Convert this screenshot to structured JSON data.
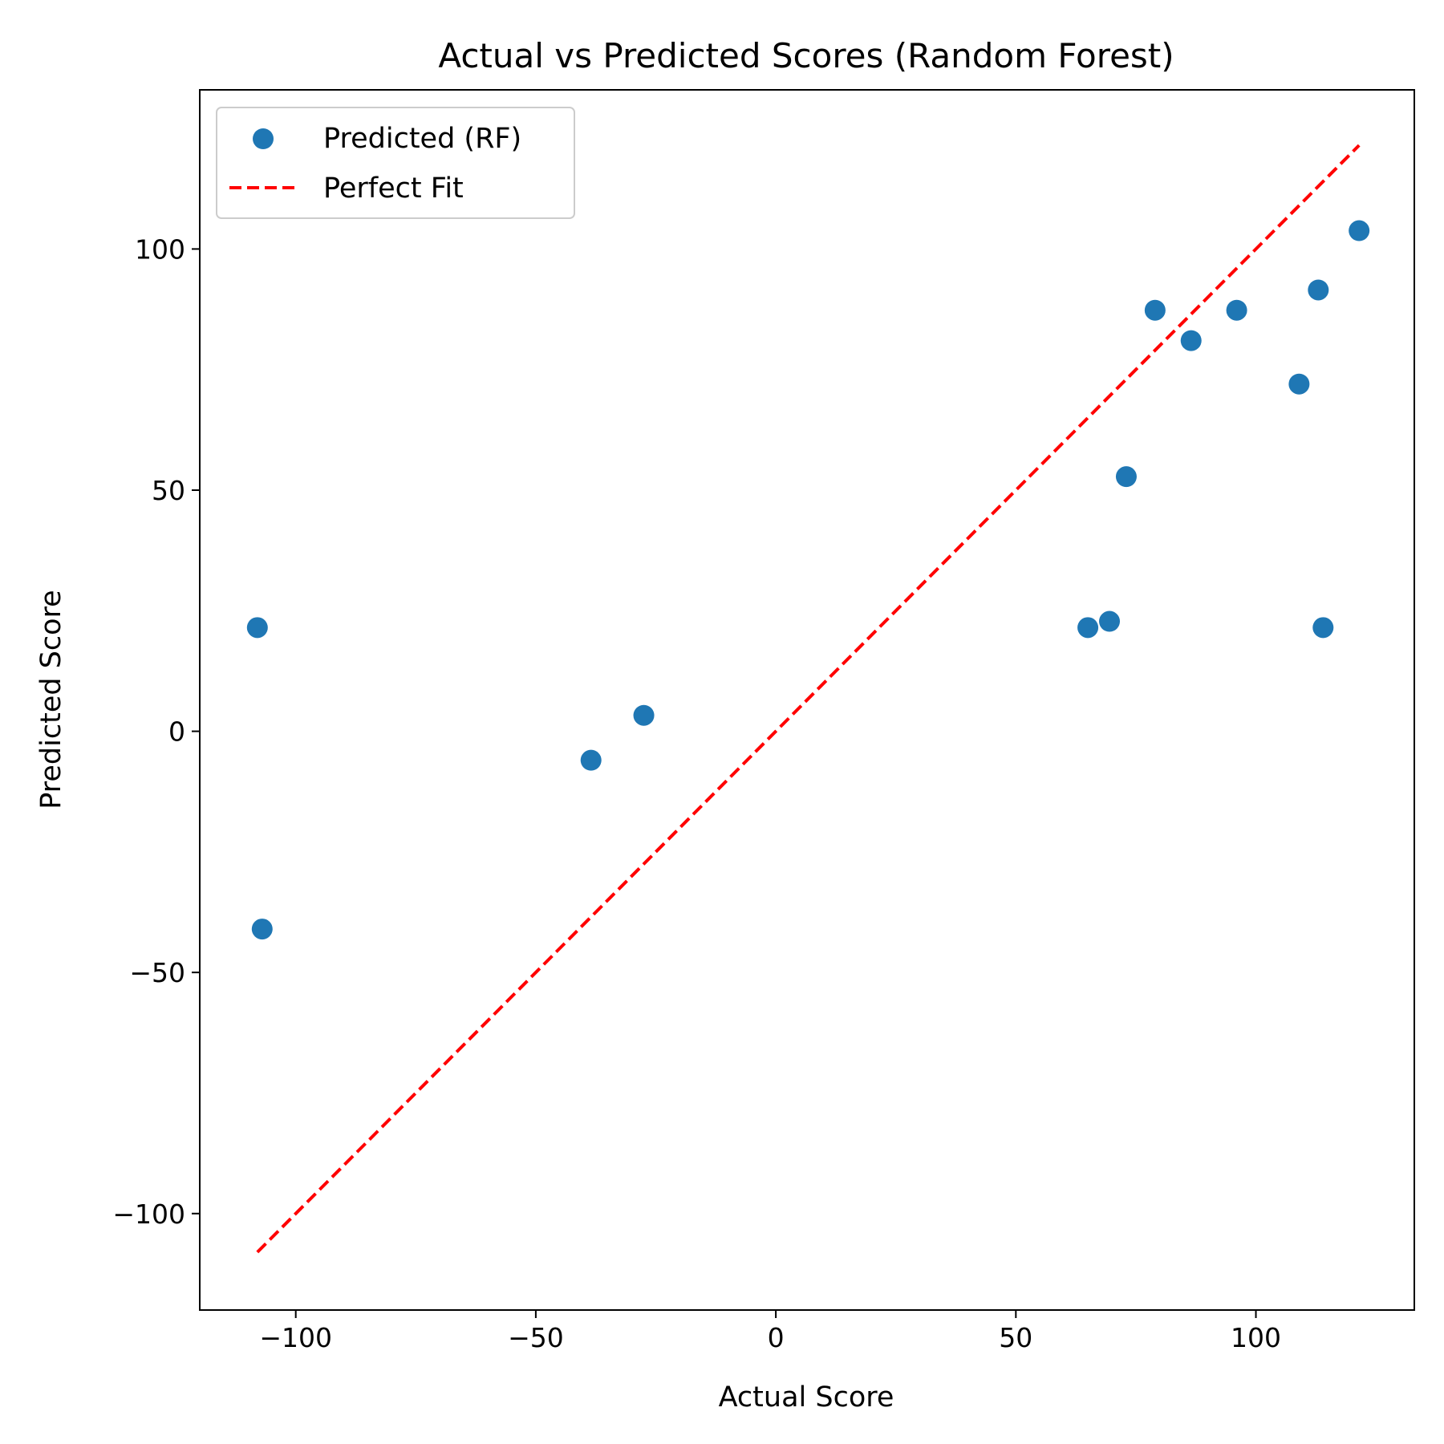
{
  "chart_data": {
    "type": "scatter",
    "title": "Actual vs Predicted Scores (Random Forest)",
    "xlabel": "Actual Score",
    "ylabel": "Predicted Score",
    "xlim": [
      -120,
      133
    ],
    "ylim": [
      -120,
      133
    ],
    "xticks": [
      -100,
      -50,
      0,
      50,
      100
    ],
    "yticks": [
      -100,
      -50,
      0,
      50,
      100
    ],
    "xtick_labels": [
      "−100",
      "−50",
      "0",
      "50",
      "100"
    ],
    "ytick_labels": [
      "−100",
      "−50",
      "0",
      "50",
      "100"
    ],
    "grid": false,
    "legend_position": "top-left",
    "series": [
      {
        "name": "Predicted (RF)",
        "kind": "scatter",
        "color": "#1f77b4",
        "x": [
          -108,
          -107,
          -38.5,
          -27.5,
          65,
          69.5,
          73,
          79,
          86.5,
          96,
          109,
          113,
          114,
          121.5
        ],
        "y": [
          21.5,
          -41,
          -6,
          3.3,
          21.5,
          22.8,
          52.8,
          87.3,
          81,
          87.3,
          72,
          91.5,
          21.5,
          103.8
        ]
      },
      {
        "name": "Perfect Fit",
        "kind": "line",
        "style": "dashed",
        "color": "#ff0000",
        "x": [
          -108,
          121.5
        ],
        "y": [
          -108,
          121.5
        ]
      }
    ]
  }
}
